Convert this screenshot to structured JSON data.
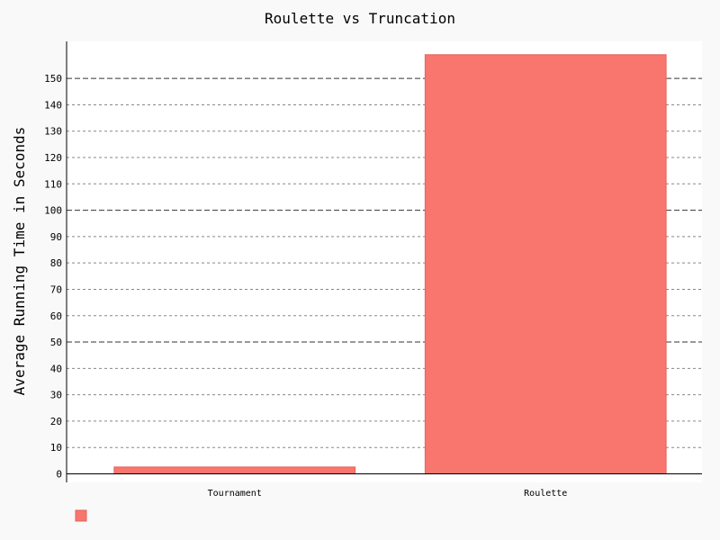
{
  "chart_data": {
    "type": "bar",
    "title": "Roulette vs Truncation",
    "xlabel": "",
    "ylabel": "Average Running Time in Seconds",
    "categories": [
      "Tournament",
      "Roulette"
    ],
    "series": [
      {
        "name": "",
        "values": [
          2.6,
          159
        ],
        "color": "#f8766d"
      }
    ],
    "ylim": [
      0,
      162
    ],
    "yticks": [
      0,
      10,
      20,
      30,
      40,
      50,
      60,
      70,
      80,
      90,
      100,
      110,
      120,
      130,
      140,
      150
    ],
    "grid": true,
    "legend": "bottom-left"
  }
}
